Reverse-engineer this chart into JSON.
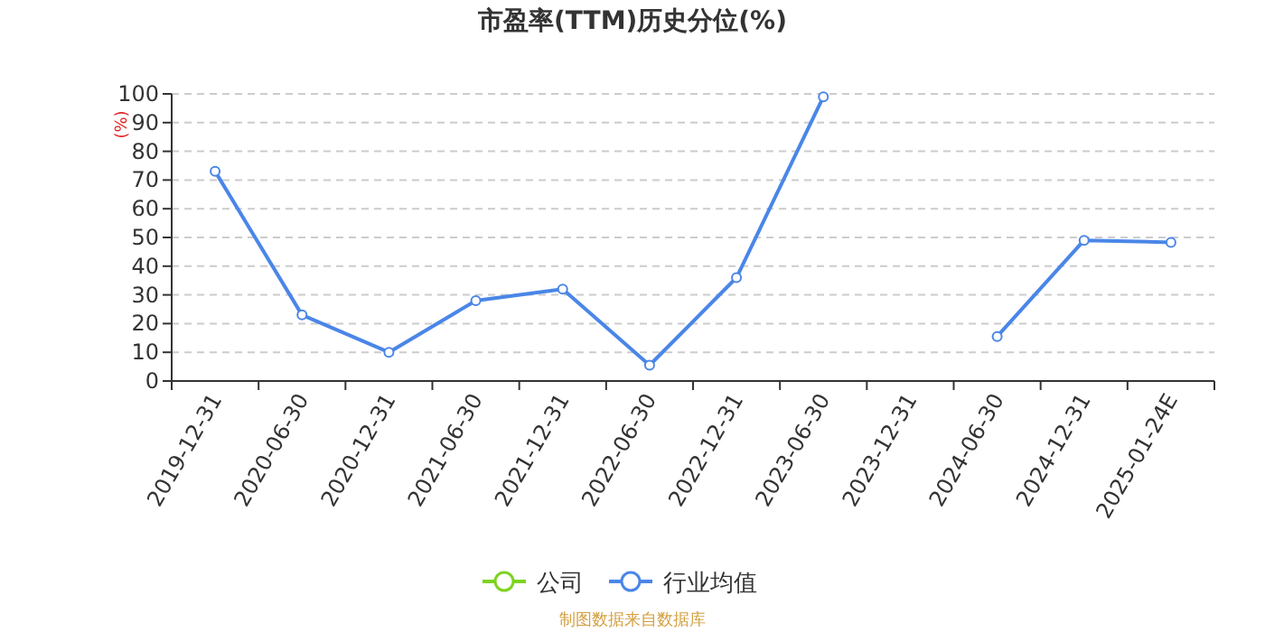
{
  "chart_data": {
    "type": "line",
    "title": "市盈率(TTM)历史分位(%)",
    "ylabel": "(%)",
    "categories": [
      "2019-12-31",
      "2020-06-30",
      "2020-12-31",
      "2021-06-30",
      "2021-12-31",
      "2022-06-30",
      "2022-12-31",
      "2023-06-30",
      "2023-12-31",
      "2024-06-30",
      "2024-12-31",
      "2025-01-24E"
    ],
    "series": [
      {
        "name": "公司",
        "color": "#7ed321",
        "values": [
          null,
          null,
          null,
          null,
          null,
          null,
          null,
          null,
          null,
          null,
          null,
          null
        ]
      },
      {
        "name": "行业均值",
        "color": "#4a86e8",
        "values": [
          73,
          23,
          10,
          28,
          32,
          5.5,
          36,
          99,
          null,
          15.5,
          49,
          48.3
        ]
      }
    ],
    "ylim": [
      0,
      100
    ],
    "yticks": [
      0,
      10,
      20,
      30,
      40,
      50,
      60,
      70,
      80,
      90,
      100
    ],
    "grid": "y",
    "legend": "bottom",
    "marker": "circle",
    "line_style": "solid",
    "annotations": [
      "制图数据来自数据库"
    ]
  }
}
